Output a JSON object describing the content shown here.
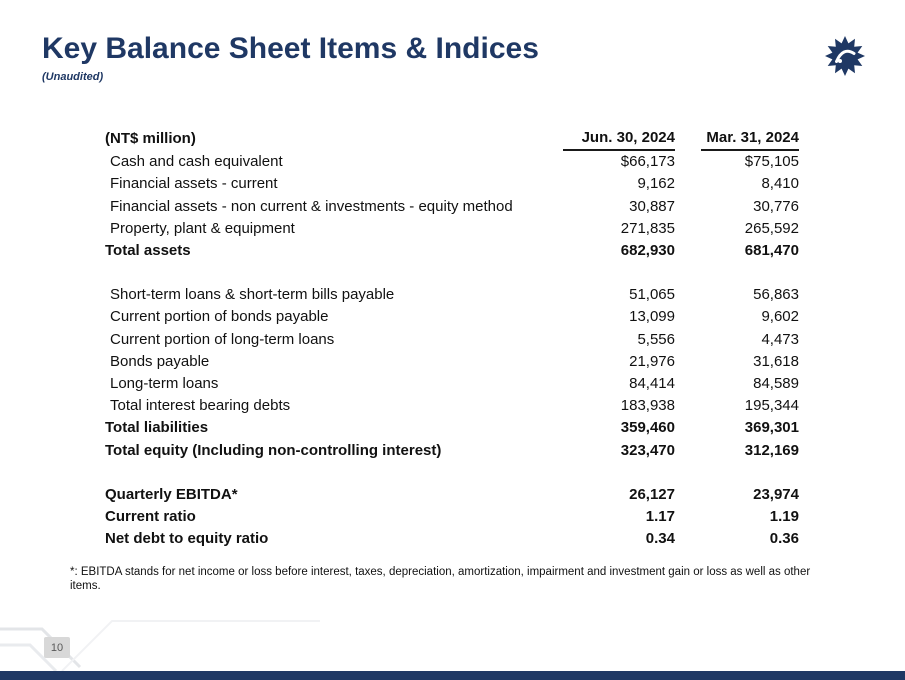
{
  "slide": {
    "title": "Key Balance Sheet Items & Indices",
    "subtitle": "(Unaudited)",
    "page_number": "10",
    "footnote": "*: EBITDA stands for net income or loss before interest, taxes, depreciation, amortization, impairment and investment gain or loss as well as other items."
  },
  "colors": {
    "accent_navy": "#1F3864",
    "text": "#111111",
    "page_number_box": "#d8d8d8"
  },
  "logo": {
    "name": "company-starburst-logo"
  },
  "table": {
    "columns": [
      "(NT$ million)",
      "Jun. 30, 2024",
      "Mar. 31, 2024"
    ],
    "rows": [
      {
        "label": "Cash and cash equivalent",
        "jun": "$66,173",
        "mar": "$75,105",
        "bold": false
      },
      {
        "label": "Financial assets - current",
        "jun": "9,162",
        "mar": "8,410",
        "bold": false
      },
      {
        "label": "Financial assets - non current & investments - equity method",
        "jun": "30,887",
        "mar": "30,776",
        "bold": false
      },
      {
        "label": "Property, plant & equipment",
        "jun": "271,835",
        "mar": "265,592",
        "bold": false
      },
      {
        "label": "Total assets",
        "jun": "682,930",
        "mar": "681,470",
        "bold": true
      },
      {
        "spacer": true
      },
      {
        "label": "Short-term loans & short-term bills payable",
        "jun": "51,065",
        "mar": "56,863",
        "bold": false
      },
      {
        "label": "Current portion of bonds payable",
        "jun": "13,099",
        "mar": "9,602",
        "bold": false
      },
      {
        "label": "Current portion of long-term loans",
        "jun": "5,556",
        "mar": "4,473",
        "bold": false
      },
      {
        "label": "Bonds payable",
        "jun": "21,976",
        "mar": "31,618",
        "bold": false
      },
      {
        "label": "Long-term loans",
        "jun": "84,414",
        "mar": "84,589",
        "bold": false
      },
      {
        "label": "Total interest bearing debts",
        "jun": "183,938",
        "mar": "195,344",
        "bold": false
      },
      {
        "label": "Total liabilities",
        "jun": "359,460",
        "mar": "369,301",
        "bold": true
      },
      {
        "label": "Total equity (Including non-controlling interest)",
        "jun": "323,470",
        "mar": "312,169",
        "bold": true
      },
      {
        "spacer": true
      },
      {
        "label": "Quarterly EBITDA*",
        "jun": "26,127",
        "mar": "23,974",
        "bold": true
      },
      {
        "label": "Current ratio",
        "jun": "1.17",
        "mar": "1.19",
        "bold": true
      },
      {
        "label": "Net debt to equity ratio",
        "jun": "0.34",
        "mar": "0.36",
        "bold": true
      }
    ]
  }
}
